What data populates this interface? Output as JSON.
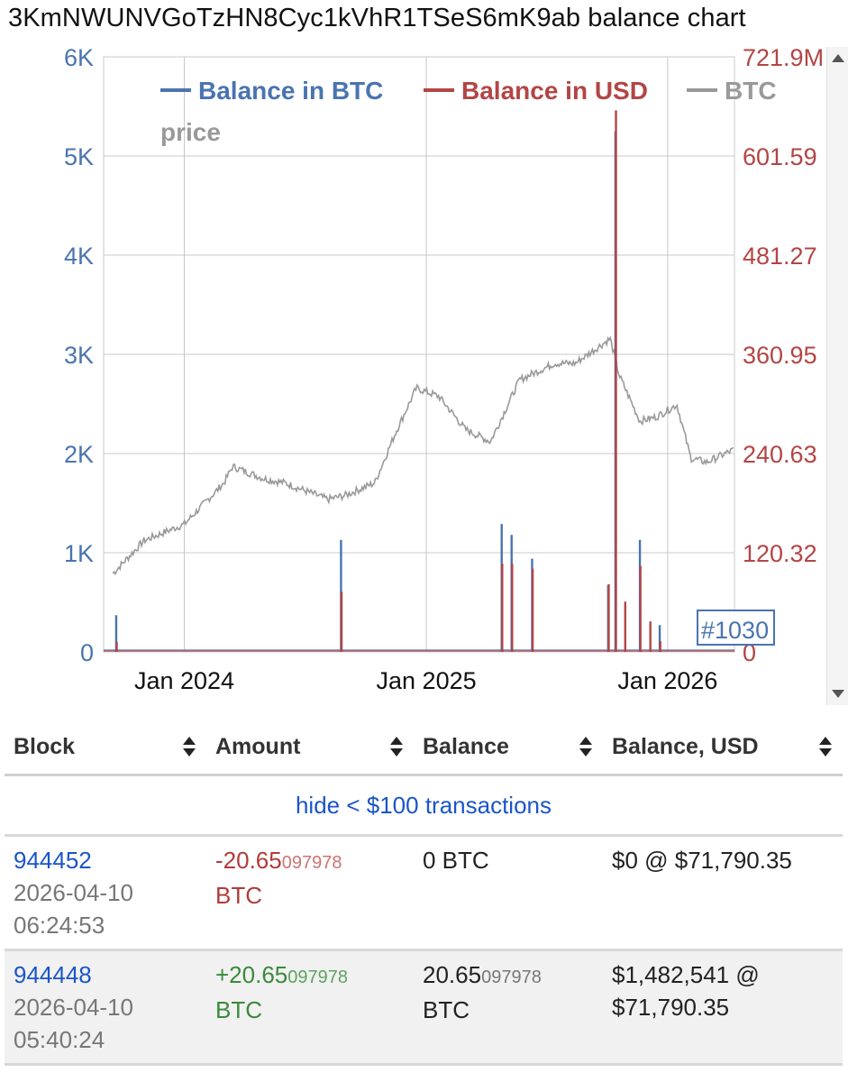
{
  "page": {
    "title": "3KmNWUNVGoTzHN8Cyc1kVhR1TSeS6mK9ab balance chart"
  },
  "colors": {
    "btc": "#4a74b0",
    "usd": "#b34545",
    "price": "#999999",
    "grid": "#c8c8c8"
  },
  "chart_data": {
    "type": "line",
    "legend": {
      "position": "top",
      "entries": [
        "Balance in BTC",
        "Balance in USD",
        "BTC price"
      ]
    },
    "x_ticks": [
      "Jan 2024",
      "Jan 2025",
      "Jan 2026"
    ],
    "y_left_ticks": [
      "0",
      "1K",
      "2K",
      "3K",
      "4K",
      "5K",
      "6K"
    ],
    "y_right_ticks": [
      "0",
      "120.32",
      "240.63",
      "360.95",
      "481.27",
      "601.59",
      "721.9M"
    ],
    "ylim_left": [
      0,
      6000
    ],
    "ylim_right": [
      0,
      721.9
    ],
    "grid": true,
    "block_label": "#1030",
    "series": [
      {
        "name": "Balance in BTC",
        "axis": "left",
        "x": [
          "2023-09-20",
          "2024-08-25",
          "2025-04-25",
          "2025-05-10",
          "2025-06-10",
          "2025-10-03",
          "2025-10-14",
          "2025-11-20",
          "2025-12-20"
        ],
        "values": [
          370,
          1130,
          1290,
          1180,
          940,
          670,
          5250,
          1130,
          270
        ]
      },
      {
        "name": "Balance in USD",
        "axis": "right",
        "x": [
          "2023-09-20",
          "2024-08-25",
          "2025-04-25",
          "2025-05-10",
          "2025-06-10",
          "2025-10-03",
          "2025-10-14",
          "2025-10-28",
          "2025-11-20",
          "2025-12-05",
          "2025-12-20"
        ],
        "values": [
          12,
          73,
          107,
          107,
          101,
          82,
          657,
          61,
          104,
          37,
          13
        ]
      },
      {
        "name": "BTC price",
        "axis": "right",
        "x": [
          "2023-09-15",
          "2023-11-01",
          "2024-01-01",
          "2024-03-01",
          "2024-03-14",
          "2024-05-01",
          "2024-06-01",
          "2024-08-05",
          "2024-09-01",
          "2024-10-15",
          "2024-11-15",
          "2024-12-17",
          "2025-01-20",
          "2025-03-01",
          "2025-04-08",
          "2025-05-22",
          "2025-07-14",
          "2025-08-14",
          "2025-10-06",
          "2025-10-20",
          "2025-11-20",
          "2025-12-15",
          "2026-01-15",
          "2026-02-05",
          "2026-03-01",
          "2026-04-10"
        ],
        "values": [
          95,
          135,
          155,
          205,
          225,
          210,
          205,
          185,
          190,
          205,
          265,
          320,
          310,
          270,
          255,
          330,
          350,
          350,
          380,
          335,
          280,
          285,
          300,
          235,
          230,
          245
        ]
      }
    ]
  },
  "table": {
    "columns": [
      "Block",
      "Amount",
      "Balance",
      "Balance, USD"
    ],
    "filter_label": "hide < $100 transactions",
    "rows": [
      {
        "block": "944452",
        "date": "2026-04-10",
        "time": "06:24:53",
        "amount_main": "-20.65",
        "amount_small": "097978",
        "amount_unit": "BTC",
        "amount_sign": "negative",
        "balance_main": "0 BTC",
        "balance_small": "",
        "balance_unit": "",
        "usd_line1": "$0 @ $71,790.35",
        "usd_line2": ""
      },
      {
        "block": "944448",
        "date": "2026-04-10",
        "time": "05:40:24",
        "amount_main": "+20.65",
        "amount_small": "097978",
        "amount_unit": "BTC",
        "amount_sign": "positive",
        "balance_main": "20.65",
        "balance_small": "097978",
        "balance_unit": "BTC",
        "usd_line1": "$1,482,541 @",
        "usd_line2": "$71,790.35"
      }
    ]
  }
}
